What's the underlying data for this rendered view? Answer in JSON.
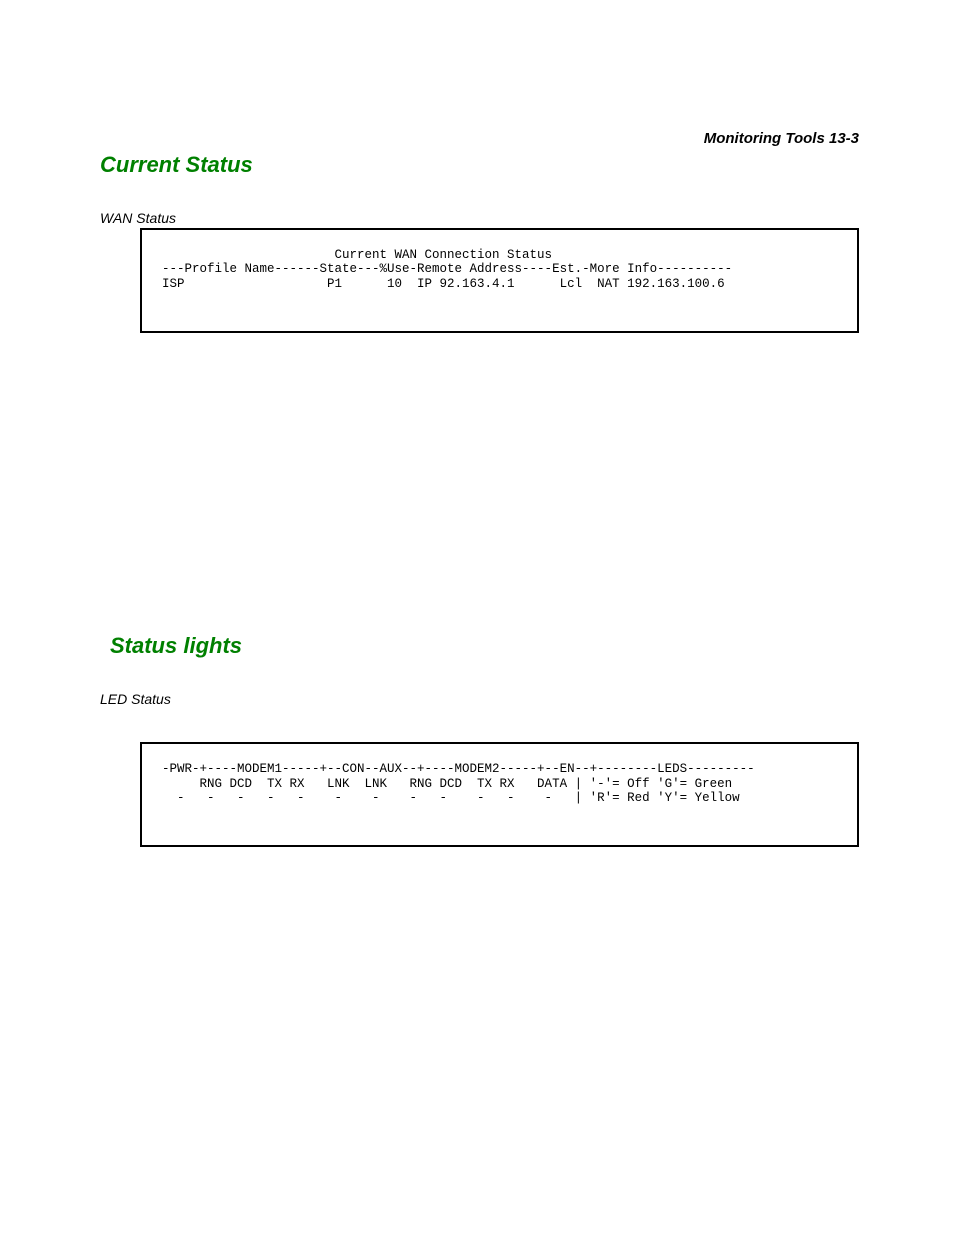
{
  "header": {
    "text": "Monitoring Tools   13-3"
  },
  "section1": {
    "heading": "Current Status",
    "label": "WAN Status",
    "terminal": {
      "line1": "                       Current WAN Connection Status",
      "line2": "---Profile Name------State---%Use-Remote Address----Est.-More Info----------",
      "line3": "ISP                   P1      10  IP 92.163.4.1      Lcl  NAT 192.163.100.6"
    }
  },
  "section2": {
    "heading": "Status lights",
    "label": "LED Status",
    "terminal": {
      "line1": "-PWR-+----MODEM1-----+--CON--AUX--+----MODEM2-----+--EN--+--------LEDS---------",
      "line2": "     RNG DCD  TX RX   LNK  LNK   RNG DCD  TX RX   DATA | '-'= Off 'G'= Green",
      "line3": "  -   -   -   -   -    -    -    -   -    -   -    -   | 'R'= Red 'Y'= Yellow"
    }
  }
}
